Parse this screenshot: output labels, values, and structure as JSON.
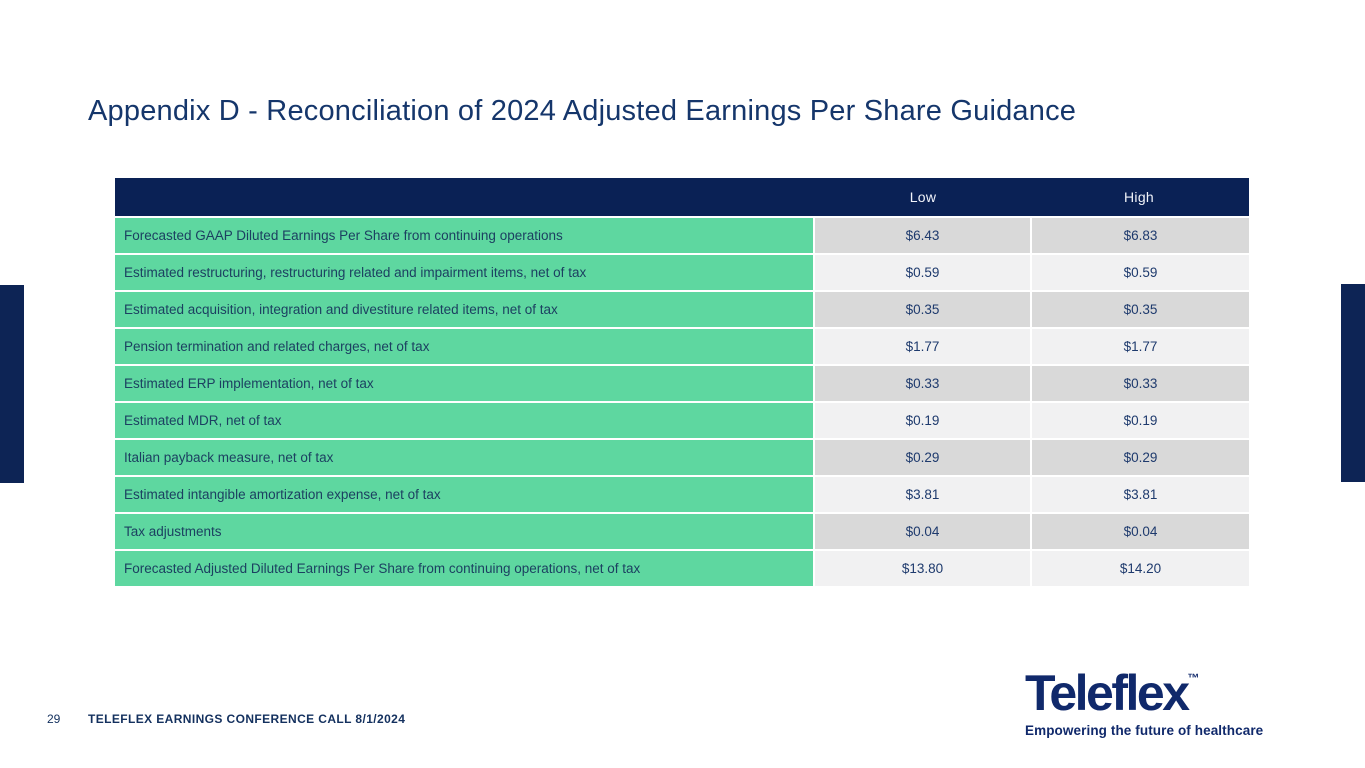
{
  "title": "Appendix D - Reconciliation of 2024 Adjusted Earnings Per Share Guidance",
  "table": {
    "header": {
      "low": "Low",
      "high": "High"
    },
    "rows": [
      {
        "label": "Forecasted GAAP Diluted Earnings Per Share from continuing operations",
        "low": "$6.43",
        "high": "$6.83"
      },
      {
        "label": "Estimated restructuring, restructuring related and impairment items, net of tax",
        "low": "$0.59",
        "high": "$0.59"
      },
      {
        "label": "Estimated acquisition, integration and divestiture related items, net of tax",
        "low": "$0.35",
        "high": "$0.35"
      },
      {
        "label": "Pension termination and related charges, net of tax",
        "low": "$1.77",
        "high": "$1.77"
      },
      {
        "label": "Estimated ERP implementation, net of tax",
        "low": "$0.33",
        "high": "$0.33"
      },
      {
        "label": "Estimated MDR, net of tax",
        "low": "$0.19",
        "high": "$0.19"
      },
      {
        "label": "Italian payback measure, net of tax",
        "low": "$0.29",
        "high": "$0.29"
      },
      {
        "label": "Estimated intangible amortization expense, net of tax",
        "low": "$3.81",
        "high": "$3.81"
      },
      {
        "label": "Tax adjustments",
        "low": "$0.04",
        "high": "$0.04"
      },
      {
        "label": "Forecasted Adjusted Diluted Earnings Per Share from continuing operations, net of tax",
        "low": "$13.80",
        "high": "$14.20"
      }
    ]
  },
  "footer": {
    "page_number": "29",
    "caption": "TELEFLEX EARNINGS CONFERENCE CALL 8/1/2024"
  },
  "logo": {
    "brand": "Teleflex",
    "trademark": "™",
    "tagline": "Empowering the future of healthcare"
  },
  "colors": {
    "header_navy": "#0a2155",
    "accent_bar_navy": "#0d2455",
    "row_green": "#5ed7a0",
    "value_cell_dark": "#d9d9d9",
    "value_cell_light": "#f1f1f2",
    "title_navy": "#15366b",
    "logo_navy": "#10296b"
  }
}
